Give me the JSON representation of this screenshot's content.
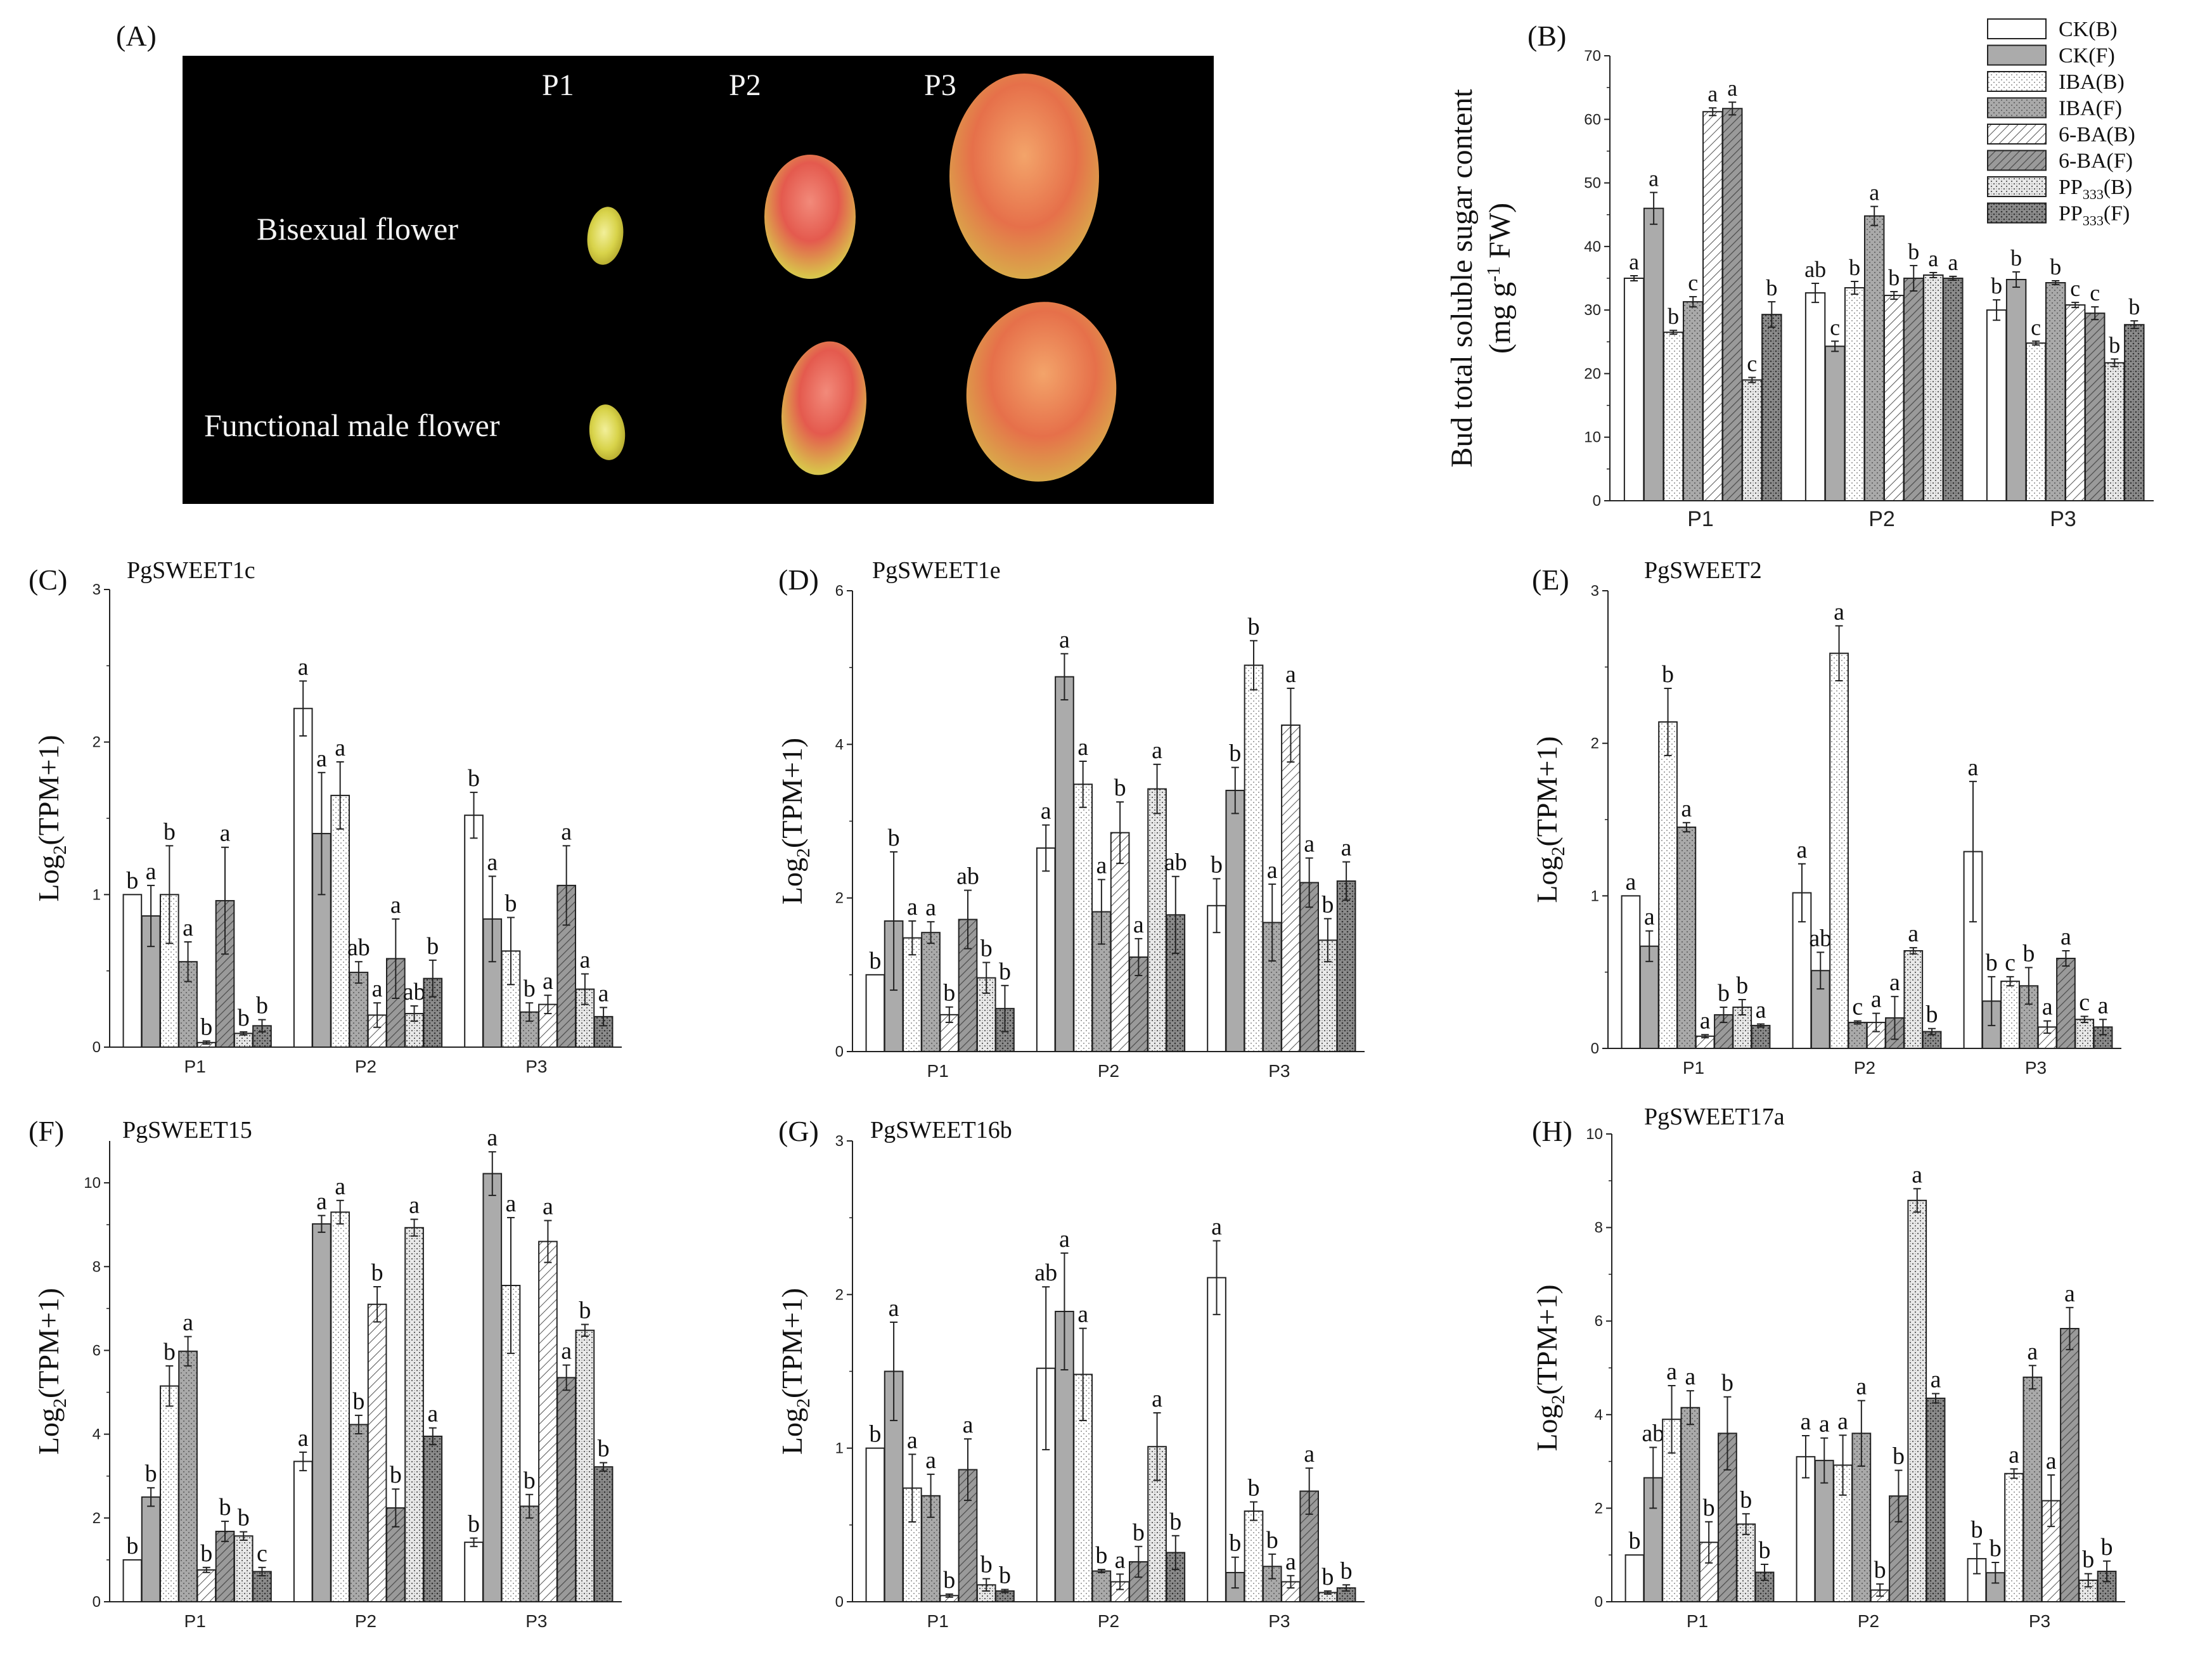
{
  "panels": {
    "A": "(A)",
    "B": "(B)",
    "C": "(C)",
    "D": "(D)",
    "E": "(E)",
    "F": "(F)",
    "G": "(G)",
    "H": "(H)"
  },
  "photo": {
    "stages": [
      "P1",
      "P2",
      "P3"
    ],
    "rows": [
      "Bisexual flower",
      "Functional male flower"
    ]
  },
  "legend": [
    {
      "label": "CK(B)",
      "pattern": "p0"
    },
    {
      "label": "CK(F)",
      "pattern": "p1"
    },
    {
      "label": "IBA(B)",
      "pattern": "p2"
    },
    {
      "label": "IBA(F)",
      "pattern": "p3"
    },
    {
      "label": "6-BA(B)",
      "pattern": "p4"
    },
    {
      "label": "6-BA(F)",
      "pattern": "p5"
    },
    {
      "label": "PP333(B)",
      "pattern": "p6"
    },
    {
      "label": "PP333(F)",
      "pattern": "p7"
    }
  ],
  "chart_data": [
    {
      "id": "B",
      "type": "bar",
      "title": "",
      "ylabel": "Bud total soluble sugar content (mg g-1 FW)",
      "ylim": [
        0,
        70
      ],
      "yticks": [
        0,
        10,
        20,
        30,
        40,
        50,
        60,
        70
      ],
      "categories": [
        "P1",
        "P2",
        "P3"
      ],
      "values": [
        [
          35,
          46,
          26.5,
          31.3,
          61.2,
          61.7,
          19,
          29.3
        ],
        [
          32.7,
          24.3,
          33.5,
          44.8,
          32.3,
          35,
          35.5,
          35
        ],
        [
          30,
          34.8,
          24.8,
          34.3,
          30.8,
          29.5,
          21.7,
          27.7
        ]
      ],
      "errors": [
        [
          0.4,
          2.5,
          0.3,
          0.8,
          0.6,
          1,
          0.4,
          2
        ],
        [
          1.5,
          0.8,
          1,
          1.5,
          0.6,
          2,
          0.4,
          0.3
        ],
        [
          1.6,
          1.2,
          0.3,
          0.3,
          0.4,
          1,
          0.6,
          0.6
        ]
      ],
      "letters": [
        [
          "a",
          "a",
          "b",
          "c",
          "a",
          "a",
          "c",
          "b"
        ],
        [
          "ab",
          "c",
          "b",
          "a",
          "b",
          "b",
          "a",
          "a"
        ],
        [
          "b",
          "b",
          "c",
          "b",
          "c",
          "c",
          "b",
          "b"
        ]
      ]
    },
    {
      "id": "C",
      "type": "bar",
      "title": "PgSWEET1c",
      "ylabel": "Log2(TPM+1)",
      "ylim": [
        0,
        3
      ],
      "yticks": [
        0,
        1,
        2,
        3
      ],
      "categories": [
        "P1",
        "P2",
        "P3"
      ],
      "values": [
        [
          1,
          0.86,
          1,
          0.56,
          0.03,
          0.96,
          0.09,
          0.14
        ],
        [
          2.22,
          1.4,
          1.65,
          0.49,
          0.21,
          0.58,
          0.22,
          0.45
        ],
        [
          1.52,
          0.84,
          0.63,
          0.23,
          0.28,
          1.06,
          0.38,
          0.2
        ]
      ],
      "errors": [
        [
          0,
          0.2,
          0.32,
          0.13,
          0.01,
          0.35,
          0.01,
          0.04
        ],
        [
          0.18,
          0.4,
          0.22,
          0.07,
          0.08,
          0.26,
          0.05,
          0.12
        ],
        [
          0.15,
          0.28,
          0.22,
          0.06,
          0.06,
          0.26,
          0.1,
          0.06
        ]
      ],
      "letters": [
        [
          "b",
          "a",
          "b",
          "a",
          "b",
          "a",
          "b",
          "b"
        ],
        [
          "a",
          "a",
          "a",
          "ab",
          "a",
          "a",
          "ab",
          "b"
        ],
        [
          "b",
          "a",
          "b",
          "b",
          "a",
          "a",
          "a",
          "a"
        ]
      ]
    },
    {
      "id": "D",
      "type": "bar",
      "title": "PgSWEET1e",
      "ylabel": "Log2(TPM+1)",
      "ylim": [
        0,
        6
      ],
      "yticks": [
        0,
        2,
        4,
        6
      ],
      "categories": [
        "P1",
        "P2",
        "P3"
      ],
      "values": [
        [
          1,
          1.7,
          1.48,
          1.55,
          0.48,
          1.72,
          0.96,
          0.56
        ],
        [
          2.65,
          4.88,
          3.48,
          1.82,
          2.85,
          1.23,
          3.42,
          1.78
        ],
        [
          1.9,
          3.4,
          5.03,
          1.68,
          4.25,
          2.2,
          1.45,
          2.22
        ]
      ],
      "errors": [
        [
          0,
          0.9,
          0.22,
          0.14,
          0.1,
          0.38,
          0.2,
          0.3
        ],
        [
          0.3,
          0.3,
          0.3,
          0.42,
          0.4,
          0.24,
          0.32,
          0.5
        ],
        [
          0.35,
          0.3,
          0.32,
          0.5,
          0.48,
          0.32,
          0.28,
          0.25
        ]
      ],
      "letters": [
        [
          "b",
          "b",
          "a",
          "a",
          "b",
          "ab",
          "b",
          "b"
        ],
        [
          "a",
          "a",
          "a",
          "a",
          "b",
          "a",
          "a",
          "ab"
        ],
        [
          "b",
          "b",
          "b",
          "a",
          "a",
          "a",
          "b",
          "a"
        ]
      ]
    },
    {
      "id": "E",
      "type": "bar",
      "title": "PgSWEET2",
      "ylabel": "Log2(TPM+1)",
      "ylim": [
        0,
        3
      ],
      "yticks": [
        0,
        1,
        2,
        3
      ],
      "categories": [
        "P1",
        "P2",
        "P3"
      ],
      "values": [
        [
          1,
          0.67,
          2.14,
          1.45,
          0.08,
          0.22,
          0.27,
          0.15
        ],
        [
          1.02,
          0.51,
          2.59,
          0.17,
          0.17,
          0.2,
          0.64,
          0.11
        ],
        [
          1.29,
          0.31,
          0.44,
          0.41,
          0.14,
          0.59,
          0.19,
          0.14
        ]
      ],
      "errors": [
        [
          0,
          0.1,
          0.22,
          0.03,
          0.01,
          0.05,
          0.05,
          0.01
        ],
        [
          0.19,
          0.12,
          0.18,
          0.01,
          0.06,
          0.14,
          0.02,
          0.02
        ],
        [
          0.46,
          0.16,
          0.03,
          0.12,
          0.04,
          0.05,
          0.02,
          0.05
        ]
      ],
      "letters": [
        [
          "a",
          "a",
          "b",
          "a",
          "a",
          "b",
          "b",
          "a"
        ],
        [
          "a",
          "ab",
          "a",
          "c",
          "a",
          "a",
          "a",
          "b"
        ],
        [
          "a",
          "b",
          "c",
          "b",
          "a",
          "a",
          "c",
          "a"
        ]
      ]
    },
    {
      "id": "F",
      "type": "bar",
      "title": "PgSWEET15",
      "ylabel": "Log2(TPM+1)",
      "ylim": [
        0,
        11
      ],
      "yticks": [
        0,
        2,
        4,
        6,
        8,
        10
      ],
      "categories": [
        "P1",
        "P2",
        "P3"
      ],
      "values": [
        [
          1,
          2.5,
          5.15,
          5.98,
          0.76,
          1.68,
          1.57,
          0.72
        ],
        [
          3.35,
          9.02,
          9.3,
          4.23,
          7.1,
          2.24,
          8.93,
          3.95
        ],
        [
          1.42,
          10.22,
          7.55,
          2.28,
          8.6,
          5.35,
          6.48,
          3.22
        ]
      ],
      "errors": [
        [
          0,
          0.22,
          0.48,
          0.35,
          0.06,
          0.24,
          0.1,
          0.1
        ],
        [
          0.22,
          0.2,
          0.28,
          0.22,
          0.42,
          0.45,
          0.2,
          0.2
        ],
        [
          0.1,
          0.52,
          1.62,
          0.28,
          0.5,
          0.3,
          0.14,
          0.1
        ]
      ],
      "letters": [
        [
          "b",
          "b",
          "b",
          "a",
          "b",
          "b",
          "b",
          "c"
        ],
        [
          "a",
          "a",
          "a",
          "b",
          "b",
          "b",
          "a",
          "a"
        ],
        [
          "b",
          "a",
          "a",
          "b",
          "a",
          "a",
          "b",
          "b"
        ]
      ]
    },
    {
      "id": "G",
      "type": "bar",
      "title": "PgSWEET16b",
      "ylabel": "Log2(TPM+1)",
      "ylim": [
        0,
        3
      ],
      "yticks": [
        0,
        1,
        2,
        3
      ],
      "categories": [
        "P1",
        "P2",
        "P3"
      ],
      "values": [
        [
          1,
          1.5,
          0.74,
          0.69,
          0.04,
          0.86,
          0.11,
          0.07
        ],
        [
          1.52,
          1.89,
          1.48,
          0.2,
          0.13,
          0.26,
          1.01,
          0.32
        ],
        [
          2.11,
          0.19,
          0.59,
          0.23,
          0.13,
          0.72,
          0.06,
          0.09
        ]
      ],
      "errors": [
        [
          0,
          0.32,
          0.22,
          0.14,
          0.01,
          0.2,
          0.04,
          0.01
        ],
        [
          0.53,
          0.38,
          0.3,
          0.01,
          0.05,
          0.1,
          0.22,
          0.11
        ],
        [
          0.24,
          0.1,
          0.06,
          0.08,
          0.04,
          0.15,
          0.01,
          0.02
        ]
      ],
      "letters": [
        [
          "b",
          "a",
          "a",
          "a",
          "b",
          "a",
          "b",
          "b"
        ],
        [
          "ab",
          "a",
          "a",
          "b",
          "a",
          "b",
          "a",
          "b"
        ],
        [
          "a",
          "b",
          "b",
          "b",
          "a",
          "a",
          "b",
          "b"
        ]
      ]
    },
    {
      "id": "H",
      "type": "bar",
      "title": "PgSWEET17a",
      "ylabel": "Log2(TPM+1)",
      "ylim": [
        0,
        10
      ],
      "yticks": [
        0,
        2,
        4,
        6,
        8,
        10
      ],
      "categories": [
        "P1",
        "P2",
        "P3"
      ],
      "values": [
        [
          1,
          2.65,
          3.9,
          4.15,
          1.27,
          3.6,
          1.66,
          0.63
        ],
        [
          3.1,
          3.02,
          2.92,
          3.6,
          0.25,
          2.26,
          8.58,
          4.35
        ],
        [
          0.92,
          0.62,
          2.74,
          4.8,
          2.16,
          5.84,
          0.46,
          0.65
        ]
      ],
      "errors": [
        [
          0,
          0.65,
          0.72,
          0.36,
          0.44,
          0.78,
          0.22,
          0.17
        ],
        [
          0.45,
          0.48,
          0.64,
          0.7,
          0.13,
          0.55,
          0.25,
          0.1
        ],
        [
          0.32,
          0.22,
          0.1,
          0.25,
          0.55,
          0.45,
          0.14,
          0.22
        ]
      ],
      "letters": [
        [
          "b",
          "ab",
          "a",
          "a",
          "b",
          "b",
          "b",
          "b"
        ],
        [
          "a",
          "a",
          "a",
          "a",
          "b",
          "b",
          "a",
          "a"
        ],
        [
          "b",
          "b",
          "a",
          "a",
          "a",
          "a",
          "b",
          "b"
        ]
      ]
    }
  ]
}
